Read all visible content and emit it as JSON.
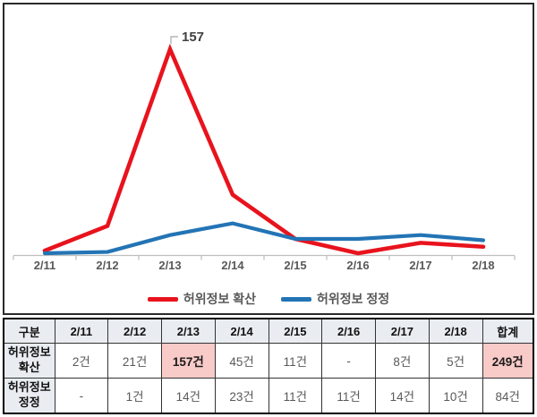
{
  "chart_data": {
    "type": "line",
    "title": "",
    "xlabel": "",
    "ylabel": "",
    "categories": [
      "2/11",
      "2/12",
      "2/13",
      "2/14",
      "2/15",
      "2/16",
      "2/17",
      "2/18"
    ],
    "series": [
      {
        "name": "허위정보 확산",
        "color": "#e8131d",
        "values": [
          2,
          21,
          157,
          45,
          11,
          0,
          8,
          5
        ]
      },
      {
        "name": "허위정보 정정",
        "color": "#2374b5",
        "values": [
          0,
          1,
          14,
          23,
          11,
          11,
          14,
          10
        ]
      }
    ],
    "annotation": {
      "series_index": 0,
      "point_index": 2,
      "text": "157"
    },
    "ylim": [
      0,
      157
    ],
    "grid": false,
    "y_axis_shown": false,
    "legend_position": "bottom"
  },
  "colors": {
    "series_spread": "#e8131d",
    "series_correction": "#2374b5",
    "axis_line": "#bfbfbf",
    "axis_label_text": "#595959",
    "annotation_text": "#404040",
    "annotation_leader": "#a6a6a6",
    "table_header_bg": "#e9edf2",
    "table_highlight_bg": "#f8cbc8",
    "table_value_text": "#595959"
  },
  "table": {
    "header": [
      "구분",
      "2/11",
      "2/12",
      "2/13",
      "2/14",
      "2/15",
      "2/16",
      "2/17",
      "2/18",
      "합계"
    ],
    "rows": [
      {
        "label": "허위정보 확산",
        "cells": [
          "2건",
          "21건",
          "157건",
          "45건",
          "11건",
          "-",
          "8건",
          "5건",
          "249건"
        ],
        "highlight_cols": [
          2,
          8
        ]
      },
      {
        "label": "허위정보 정정",
        "cells": [
          "-",
          "1건",
          "14건",
          "23건",
          "11건",
          "11건",
          "14건",
          "10건",
          "84건"
        ],
        "highlight_cols": []
      }
    ]
  }
}
